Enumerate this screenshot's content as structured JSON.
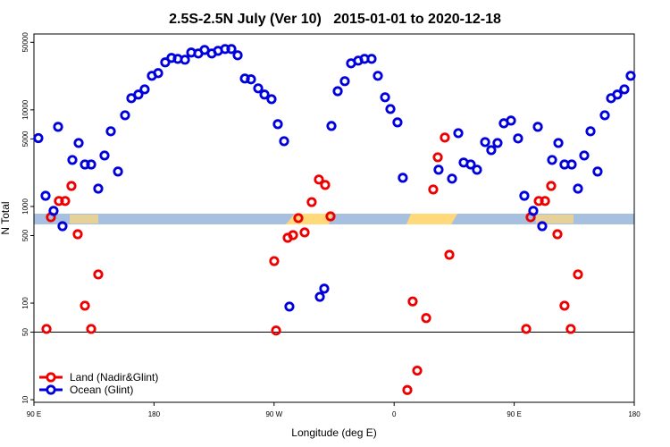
{
  "chart_data": {
    "type": "scatter",
    "title": "2.5S-2.5N July (Ver 10)   2015-01-01 to 2020-12-18",
    "xlabel": "Longitude (deg E)",
    "ylabel": "N Total",
    "xlim": [
      90,
      540
    ],
    "xticks": [
      {
        "value": 90,
        "label": "90 E"
      },
      180,
      {
        "value": 270,
        "label": "90 W"
      },
      {
        "value": 360,
        "label": "0"
      },
      {
        "value": 450,
        "label": "90 E"
      },
      {
        "value": 540,
        "label": "180"
      }
    ],
    "ylim": [
      9.4,
      61000
    ],
    "yticks": [
      10,
      50,
      100,
      500,
      1000,
      5000,
      10000,
      50000
    ],
    "log_y": true,
    "hline": 50,
    "legend": "bottom-left",
    "series": [
      {
        "name": "Land (Nadir&Glint)",
        "color": "#ee0000",
        "x": [
          99.4,
          102.7,
          108.7,
          113.4,
          118.1,
          122.8,
          128.2,
          132.9,
          138.2,
          270.1,
          271.5,
          280.2,
          284.2,
          288.2,
          292.9,
          298.2,
          303.6,
          308.3,
          312.3,
          369.9,
          373.9,
          377.3,
          384.0,
          389.3,
          392.7,
          398.0,
          401.4,
          459.0,
          462.3,
          468.4,
          473.1,
          477.7,
          482.4,
          487.7,
          492.4,
          497.8
        ],
        "values": [
          54,
          774,
          1140,
          1140,
          1630,
          516,
          94,
          54,
          198,
          272,
          52,
          474,
          505,
          758,
          539,
          1110,
          1900,
          1670,
          790,
          12.6,
          104,
          20,
          70,
          1500,
          3230,
          5170,
          316,
          54,
          774,
          1140,
          1140,
          1630,
          516,
          94,
          54,
          198
        ]
      },
      {
        "name": "Ocean (Glint)",
        "color": "#0000dd",
        "x": [
          93.3,
          98.7,
          104.7,
          108.1,
          111.4,
          118.8,
          123.5,
          128.2,
          132.9,
          138.2,
          142.9,
          147.6,
          153.0,
          158.3,
          163.0,
          168.3,
          173.0,
          178.4,
          183.1,
          188.4,
          193.1,
          197.8,
          203.2,
          207.9,
          213.2,
          217.9,
          223.3,
          228.0,
          233.3,
          238.0,
          242.7,
          248.1,
          252.7,
          258.1,
          262.8,
          268.1,
          272.8,
          277.5,
          281.5,
          304.3,
          307.6,
          313.0,
          317.7,
          323.0,
          327.7,
          333.1,
          337.8,
          343.1,
          347.8,
          353.2,
          357.2,
          362.5,
          366.5,
          393.3,
          403.4,
          408.1,
          412.1,
          417.4,
          422.1,
          428.2,
          432.8,
          437.5,
          442.2,
          447.6,
          452.9,
          457.6,
          464.3,
          467.7,
          471.0,
          478.4,
          483.1,
          487.7,
          493.1,
          497.8,
          502.5,
          507.2,
          512.5,
          517.9,
          522.6,
          527.3,
          532.6,
          537.3
        ],
        "values": [
          5100,
          1290,
          900,
          6670,
          625,
          3030,
          4540,
          2720,
          2720,
          1530,
          3370,
          6000,
          2300,
          8790,
          13200,
          14400,
          16300,
          22500,
          24000,
          31000,
          34500,
          33700,
          33000,
          39200,
          38300,
          41700,
          38300,
          40800,
          42600,
          42600,
          36700,
          21100,
          20700,
          16700,
          14400,
          12900,
          7110,
          4740,
          92,
          116,
          141,
          6810,
          15600,
          19800,
          30300,
          32300,
          33700,
          33700,
          22500,
          13500,
          10200,
          7420,
          1980,
          2400,
          1940,
          5740,
          2850,
          2720,
          2400,
          4640,
          3830,
          4540,
          7260,
          7740,
          5060,
          1290,
          900,
          6670,
          625,
          3030,
          4540,
          2720,
          2720,
          1530,
          3370,
          6000,
          2300,
          8790,
          13200,
          14400,
          16300,
          22500
        ]
      }
    ]
  }
}
